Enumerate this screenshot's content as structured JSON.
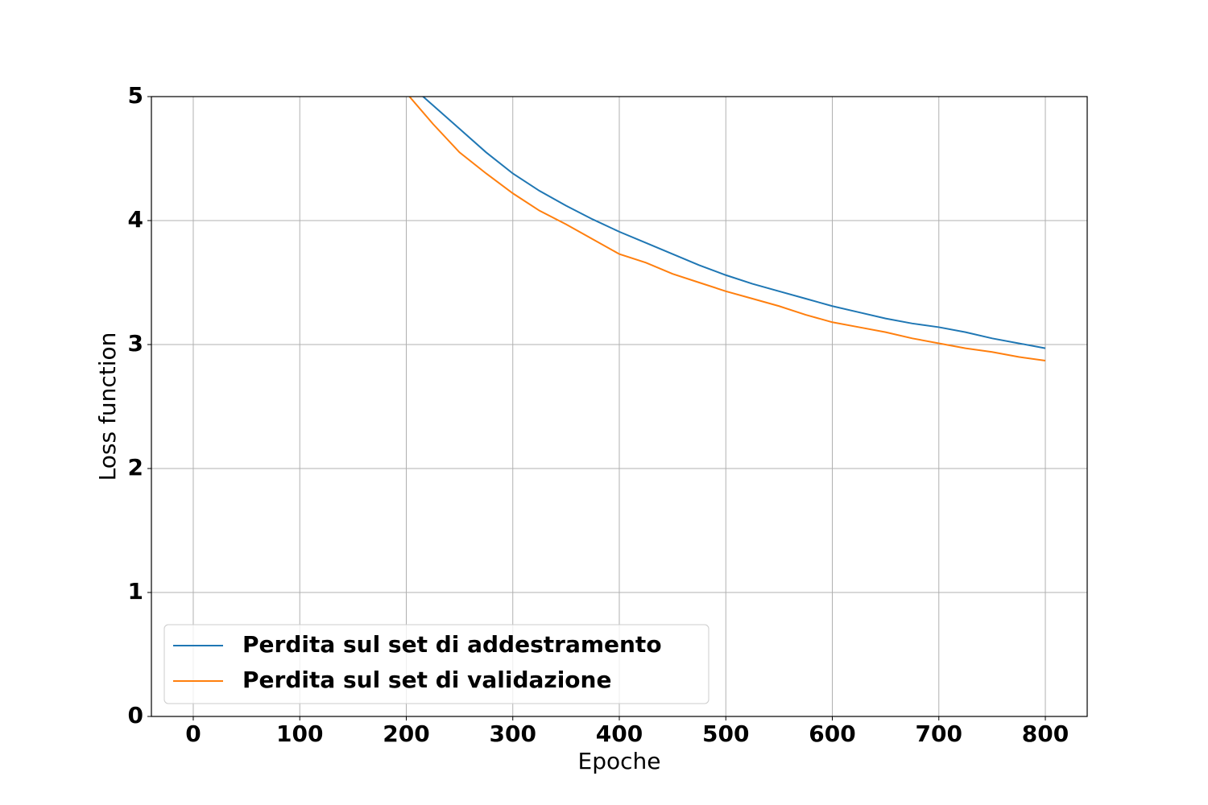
{
  "chart_data": {
    "type": "line",
    "x_label": "Epoche",
    "y_label": "Loss function",
    "x": [
      200,
      225,
      250,
      275,
      300,
      325,
      350,
      375,
      400,
      425,
      450,
      475,
      500,
      525,
      550,
      575,
      600,
      625,
      650,
      675,
      700,
      725,
      750,
      775,
      800
    ],
    "series": [
      {
        "name": "Perdita sul set di addestramento",
        "color": "#1f77b4",
        "values": [
          5.12,
          4.93,
          4.74,
          4.55,
          4.38,
          4.24,
          4.12,
          4.01,
          3.91,
          3.82,
          3.73,
          3.64,
          3.56,
          3.49,
          3.43,
          3.37,
          3.31,
          3.26,
          3.21,
          3.17,
          3.14,
          3.1,
          3.05,
          3.01,
          2.97
        ]
      },
      {
        "name": "Perdita sul set di validazione",
        "color": "#ff7f0e",
        "values": [
          5.03,
          4.78,
          4.55,
          4.38,
          4.22,
          4.08,
          3.97,
          3.85,
          3.73,
          3.66,
          3.57,
          3.5,
          3.43,
          3.37,
          3.31,
          3.24,
          3.18,
          3.14,
          3.1,
          3.05,
          3.01,
          2.97,
          2.94,
          2.9,
          2.87
        ]
      }
    ],
    "xlim": [
      -39.3,
      839.3
    ],
    "ylim": [
      0,
      5
    ],
    "xticks": [
      0,
      100,
      200,
      300,
      400,
      500,
      600,
      700,
      800
    ],
    "yticks": [
      0,
      1,
      2,
      3,
      4,
      5
    ],
    "grid": true,
    "legend": "lower left"
  }
}
